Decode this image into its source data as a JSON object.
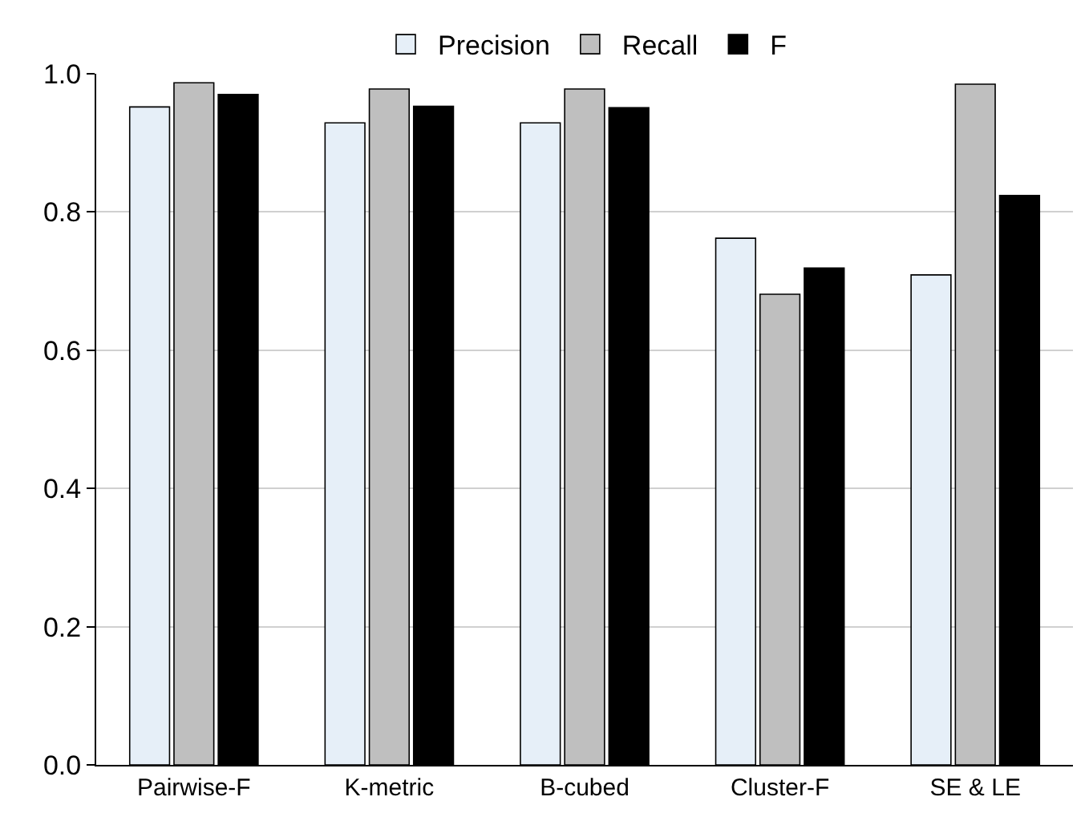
{
  "chart_data": {
    "type": "bar",
    "categories": [
      "Pairwise-F",
      "K-metric",
      "B-cubed",
      "Cluster-F",
      "SE & LE"
    ],
    "series": [
      {
        "name": "Precision",
        "color": "#e6eff8",
        "values": [
          0.952,
          0.929,
          0.929,
          0.762,
          0.709
        ]
      },
      {
        "name": "Recall",
        "color": "#bfbfbf",
        "values": [
          0.987,
          0.978,
          0.978,
          0.681,
          0.985
        ]
      },
      {
        "name": "F",
        "color": "#000000",
        "values": [
          0.97,
          0.953,
          0.951,
          0.719,
          0.824
        ]
      }
    ],
    "ylim": [
      0,
      1
    ],
    "yticks": [
      {
        "value": 0,
        "label": "0.0"
      },
      0.2,
      0.4,
      0.6,
      0.8,
      {
        "value": 1,
        "label": "1.0"
      }
    ],
    "grid": "y",
    "legend": "top"
  }
}
